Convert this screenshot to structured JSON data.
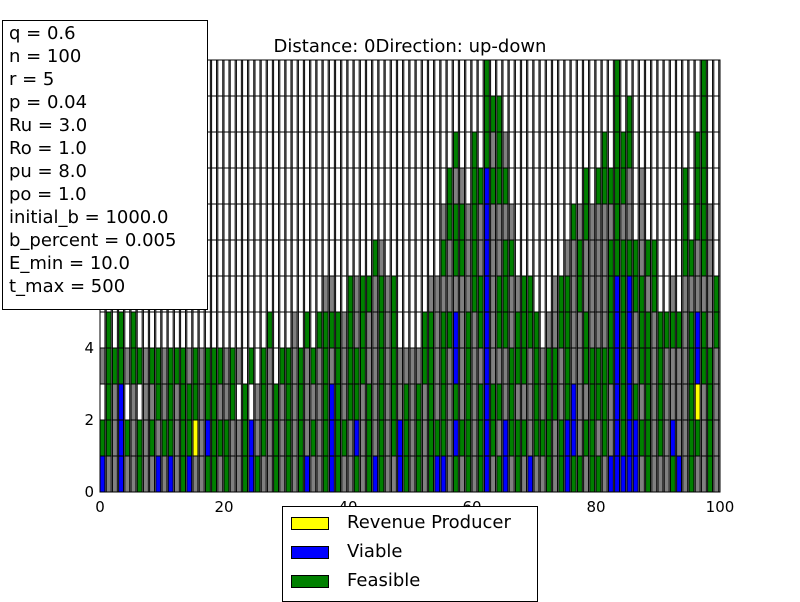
{
  "chart_data": {
    "type": "bar",
    "title": "Distance: 0Direction: up-down",
    "xlabel": "",
    "ylabel": "",
    "xlim": [
      0,
      100
    ],
    "ylim": [
      0,
      12
    ],
    "x_ticks": [
      "0",
      "20",
      "40",
      "60",
      "80",
      "100"
    ],
    "y_ticks": [
      "0",
      "2",
      "4"
    ],
    "grid": false,
    "stacked": true,
    "bar_width": 0.8,
    "cell_colors": {
      "G": "#808080",
      "F": "#008000",
      "V": "#0000ff",
      "R": "#ffff00",
      "W": "#ffffff"
    },
    "legend": [
      {
        "label": "Revenue Producer",
        "color": "#ffff00"
      },
      {
        "label": "Viable",
        "color": "#0000ff"
      },
      {
        "label": "Feasible",
        "color": "#008000"
      }
    ],
    "legend_position": "below the plot",
    "columns": [
      "VFWGWWWWWWWW",
      "GFFFFWWWWWWW",
      "GGGFWWWWWWWW",
      "VVVFFWWWWWWW",
      "GFWGWWWWWWWW",
      "GGGFFWWWWWWW",
      "FFWFWWWWWWWW",
      "GGGGWWWWWWWW",
      "GFGFWWWWWWWW",
      "VGFFWWWWWWWW",
      "GFGGWWWWWWWW",
      "VFFFWWWWWWWW",
      "GGGFWWWWWWWW",
      "FFFFWWWWWWWW",
      "VFFGWWWWWWWW",
      "GRFFWWWWWWWW",
      "GGGGWWWWWWWW",
      "FVFFWWWWWWWW",
      "FFFFWWWWWWWW",
      "GFGFWWWWWWWW",
      "FFGGWWWWWWWW",
      "GGFFWWWWWWWW",
      "GGWGWWWWWWWW",
      "FFFWWWWWWWWW",
      "VVWFWWWWWWWW",
      "FGGWWWWWWWWW",
      "GFFFWWWWWWWW",
      "GGGGFWWWWWWW",
      "FFFWWWWWWWWW",
      "GGGFWWWWWWWW",
      "FFFFWWWWWWWW",
      "GGGGGWWWWWWW",
      "FFFFWWWWWWWW",
      "VGGGFWWWWWWW",
      "GFGFWWWWWWWW",
      "GGGGFWWWWWWW",
      "FFFFFGWWWWWW",
      "VVVGFGWWWWWW",
      "FFFFFWWWWWWW",
      "GFGGGWWWWWWW",
      "GGFFFFWWWWWW",
      "FVFFGGWWWWWW",
      "GGGFFFWWWWWW",
      "FFFGGFWWWWWW",
      "VGGGGGFWWWWW",
      "FFFFFFGWWWWW",
      "GGGGGGWWWWWW",
      "GFFFFFWWWWWW",
      "VVGGWWWWWWWW",
      "FFFGWWWWWWWW",
      "GGGGWWWWWWWW",
      "FFFGWWWWWWWW",
      "GGGFFWWWWWWW",
      "FFFFFGWWWWWW",
      "VFGGGGWWWWWW",
      "VFFFFGFGWWWW",
      "GGGGFGGFFWWW",
      "FVFVVGFFGFWW",
      "GFGGGGFFGWWW",
      "FFFFFGGGWWWW",
      "GGGGGFFFFFWW",
      "FFFGFFGGFWWW",
      "VVVVVVVVVFFF",
      "GFFGGGGGFGFW",
      "FGFGFFGGFFFW",
      "VVGGFFFGFGWW",
      "GFFFGGFGWWWW",
      "FFGFFGWWWWWW",
      "GFGFFFWWWWWW",
      "VGGGFFWWWWWW",
      "GFFFFWWWWWWW",
      "GFGGWWWWWWWW",
      "FFFFGWWWWWWW",
      "GGFFGGWWWWWW",
      "FFGGFFWWWWWW",
      "VVFFFFGWWWWW",
      "FVVGGGGFWWWW",
      "FGGGGFFGWWWW",
      "GFGFFGGFFWWW",
      "FFFFGGGGWWWW",
      "FGFFGGGGFWWW",
      "GFFFGGGGFFWW",
      "VGGFFFFGFWWW",
      "VVVVVVFFFFFF",
      "VFFFFFFGFFWW",
      "VVVVVVFGGFFW",
      "VVFGGFFWWWWW",
      "GFGFFFGGGWWW",
      "FFFFFGFWWWWW",
      "GGGGGFFWWWWW",
      "GFFFFWWWWWWW",
      "GGGGFWWWWWWW",
      "FVGGFGWWWWWW",
      "VGGGFWWWWWWW",
      "GGGGGGFFFWWW",
      "FFFFFGFWWWWW",
      "GFRVVGGFFFWW",
      "GGGFFGFFFFFF",
      "FFFFGGGGWWWW",
      "GGGGFFWWWWWW"
    ]
  },
  "params": [
    "q = 0.6",
    "n = 100",
    "r = 5",
    "p = 0.04",
    "Ru = 3.0",
    "Ro = 1.0",
    "pu = 8.0",
    "po = 1.0",
    "initial_b = 1000.0",
    "b_percent = 0.005",
    "E_min = 10.0",
    "t_max = 500"
  ]
}
